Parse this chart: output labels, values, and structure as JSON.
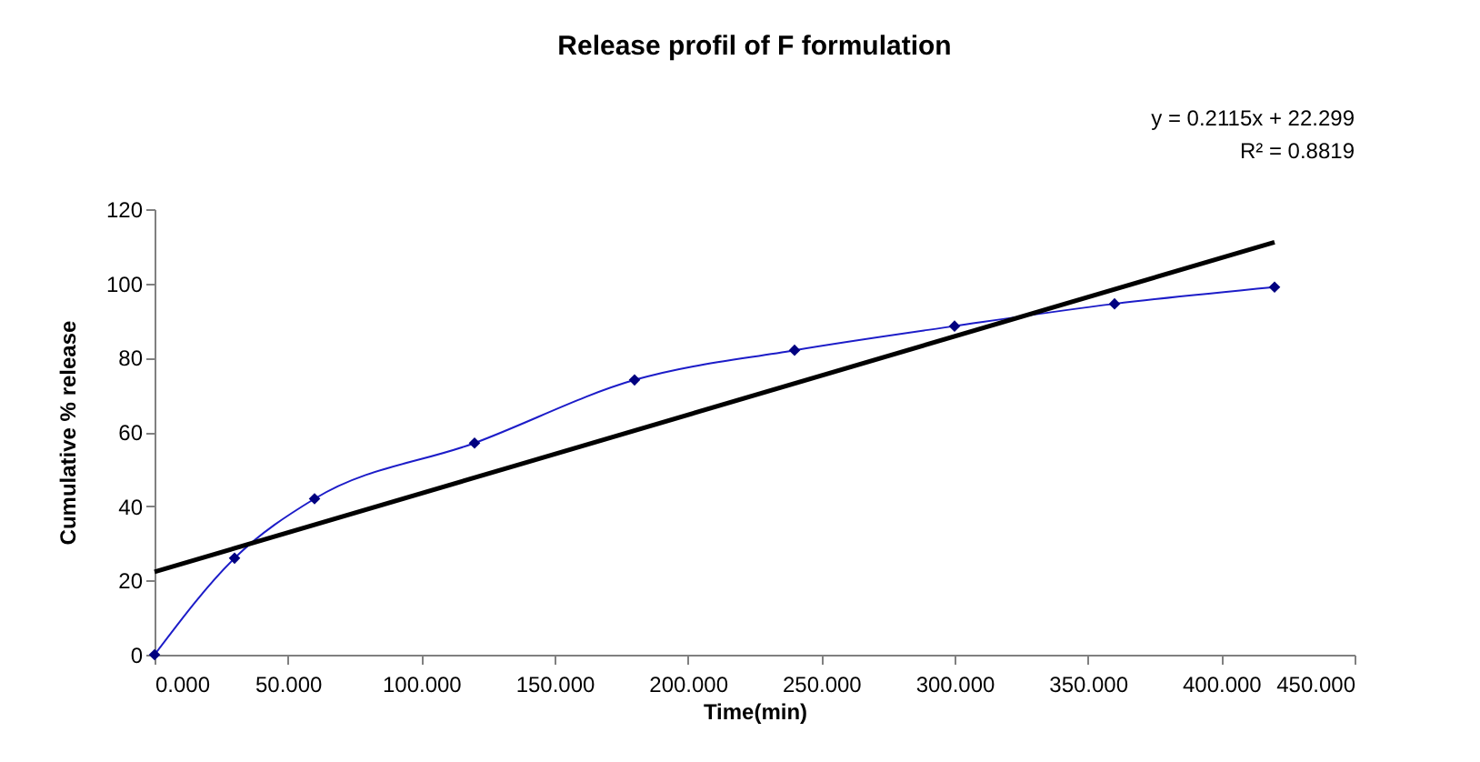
{
  "chart_data": {
    "type": "line",
    "title": "Release profil of F   formulation",
    "xlabel": "Time(min)",
    "ylabel": "Cumulative % release",
    "xlim": [
      0,
      450
    ],
    "xticks": [
      {
        "value": 0,
        "label": "0.000"
      },
      {
        "value": 50,
        "label": "50.000"
      },
      {
        "value": 100,
        "label": "100.000"
      },
      {
        "value": 150,
        "label": "150.000"
      },
      {
        "value": 200,
        "label": "200.000"
      },
      {
        "value": 250,
        "label": "250.000"
      },
      {
        "value": 300,
        "label": "300.000"
      },
      {
        "value": 350,
        "label": "350.000"
      },
      {
        "value": 400,
        "label": "400.000"
      },
      {
        "value": 450,
        "label": "450.000"
      }
    ],
    "ylim": [
      0,
      120
    ],
    "yticks": [
      0,
      20,
      40,
      60,
      80,
      100,
      120
    ],
    "grid": false,
    "legend": false,
    "series": [
      {
        "type": "line",
        "color": "#1c1cc8",
        "marker": "diamond",
        "x": [
          0,
          30,
          60,
          120,
          180,
          240,
          300,
          360,
          420
        ],
        "values": [
          0,
          26,
          42,
          57,
          74,
          82,
          88.5,
          94.5,
          99
        ]
      },
      {
        "type": "line",
        "color": "#000000",
        "marker": "none",
        "x": [
          0,
          420
        ],
        "values": [
          22.3,
          111.1
        ]
      }
    ],
    "annotations": [
      "y = 0.2115x + 22.299",
      "R² = 0.8819"
    ]
  }
}
